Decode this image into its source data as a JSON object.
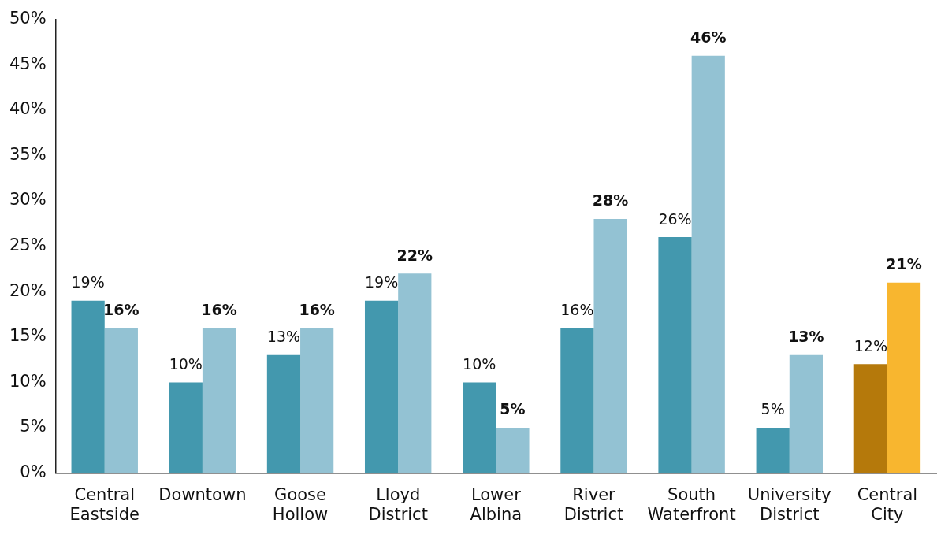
{
  "chart_data": {
    "type": "bar",
    "categories": [
      "Central Eastside",
      "Downtown",
      "Goose Hollow",
      "Lloyd District",
      "Lower Albina",
      "River District",
      "South Waterfront",
      "University District",
      "Central City"
    ],
    "series": [
      {
        "colors": [
          "#4398ae",
          "#4398ae",
          "#4398ae",
          "#4398ae",
          "#4398ae",
          "#4398ae",
          "#4398ae",
          "#4398ae",
          "#b5790b"
        ],
        "values": [
          19,
          10,
          13,
          19,
          10,
          16,
          26,
          5,
          12
        ],
        "value_labels": [
          "19%",
          "10%",
          "13%",
          "19%",
          "10%",
          "16%",
          "26%",
          "5%",
          "12%"
        ]
      },
      {
        "colors": [
          "#93c2d3",
          "#93c2d3",
          "#93c2d3",
          "#93c2d3",
          "#93c2d3",
          "#93c2d3",
          "#93c2d3",
          "#93c2d3",
          "#f8b62f"
        ],
        "values": [
          16,
          16,
          16,
          22,
          5,
          28,
          46,
          13,
          21
        ],
        "value_labels": [
          "16%",
          "16%",
          "16%",
          "22%",
          "5%",
          "28%",
          "46%",
          "13%",
          "21%"
        ]
      }
    ],
    "ylim": [
      0,
      50
    ],
    "yticks": [
      {
        "value": 0,
        "label": "0%"
      },
      {
        "value": 5,
        "label": "5%"
      },
      {
        "value": 10,
        "label": "10%"
      },
      {
        "value": 15,
        "label": "15%"
      },
      {
        "value": 20,
        "label": "20%"
      },
      {
        "value": 25,
        "label": "25%"
      },
      {
        "value": 30,
        "label": "30%"
      },
      {
        "value": 35,
        "label": "35%"
      },
      {
        "value": 40,
        "label": "40%"
      },
      {
        "value": 45,
        "label": "45%"
      },
      {
        "value": 50,
        "label": "50%"
      }
    ],
    "grid": false,
    "legend": false
  }
}
